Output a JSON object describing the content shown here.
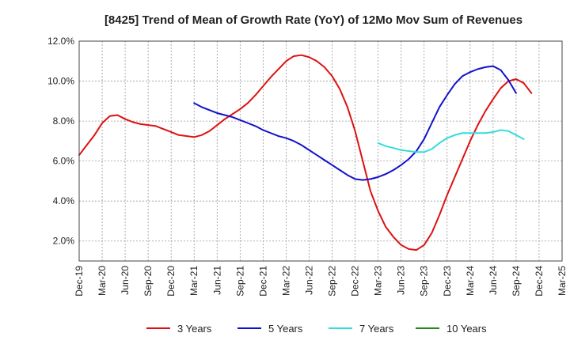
{
  "chart_data": {
    "type": "line",
    "title": "[8425]  Trend of Mean of Growth Rate (YoY) of 12Mo Mov Sum of Revenues",
    "xlabel": "",
    "ylabel": "",
    "ylim": [
      1.0,
      12.0
    ],
    "yticks": [
      2.0,
      4.0,
      6.0,
      8.0,
      10.0,
      12.0
    ],
    "ytick_labels": [
      "2.0%",
      "4.0%",
      "6.0%",
      "8.0%",
      "10.0%",
      "12.0%"
    ],
    "x_start": "Dec-19",
    "x_months_total": 63,
    "xtick_labels": [
      "Dec-19",
      "Mar-20",
      "Jun-20",
      "Sep-20",
      "Dec-20",
      "Mar-21",
      "Jun-21",
      "Sep-21",
      "Dec-21",
      "Mar-22",
      "Jun-22",
      "Sep-22",
      "Dec-22",
      "Mar-23",
      "Jun-23",
      "Sep-23",
      "Dec-23",
      "Mar-24",
      "Jun-24",
      "Sep-24",
      "Dec-24",
      "Mar-25"
    ],
    "grid": true,
    "legend_position": "bottom",
    "series": [
      {
        "name": "3 Years",
        "color": "#dd1111",
        "start_month": 0,
        "values": [
          6.3,
          6.8,
          7.3,
          7.9,
          8.25,
          8.3,
          8.1,
          7.95,
          7.85,
          7.8,
          7.75,
          7.6,
          7.45,
          7.3,
          7.25,
          7.2,
          7.3,
          7.5,
          7.8,
          8.1,
          8.35,
          8.6,
          8.9,
          9.3,
          9.75,
          10.2,
          10.6,
          11.0,
          11.25,
          11.3,
          11.2,
          11.0,
          10.7,
          10.25,
          9.6,
          8.7,
          7.5,
          6.0,
          4.5,
          3.5,
          2.7,
          2.2,
          1.8,
          1.6,
          1.55,
          1.8,
          2.4,
          3.3,
          4.3,
          5.2,
          6.1,
          7.0,
          7.8,
          8.5,
          9.1,
          9.65,
          10.0,
          10.1,
          9.9,
          9.4
        ]
      },
      {
        "name": "5 Years",
        "color": "#1111cc",
        "start_month": 15,
        "values": [
          8.9,
          8.7,
          8.55,
          8.4,
          8.3,
          8.2,
          8.05,
          7.9,
          7.75,
          7.55,
          7.4,
          7.25,
          7.15,
          7.0,
          6.8,
          6.55,
          6.3,
          6.05,
          5.8,
          5.55,
          5.3,
          5.1,
          5.05,
          5.1,
          5.2,
          5.35,
          5.55,
          5.8,
          6.1,
          6.5,
          7.1,
          7.9,
          8.7,
          9.3,
          9.85,
          10.25,
          10.45,
          10.6,
          10.7,
          10.75,
          10.55,
          10.05,
          9.4
        ]
      },
      {
        "name": "7 Years",
        "color": "#33dddd",
        "start_month": 39,
        "values": [
          6.9,
          6.75,
          6.65,
          6.55,
          6.5,
          6.45,
          6.45,
          6.6,
          6.9,
          7.15,
          7.3,
          7.4,
          7.4,
          7.4,
          7.4,
          7.45,
          7.55,
          7.5,
          7.3,
          7.1
        ]
      },
      {
        "name": "10 Years",
        "color": "#228822",
        "start_month": 0,
        "values": []
      }
    ]
  }
}
